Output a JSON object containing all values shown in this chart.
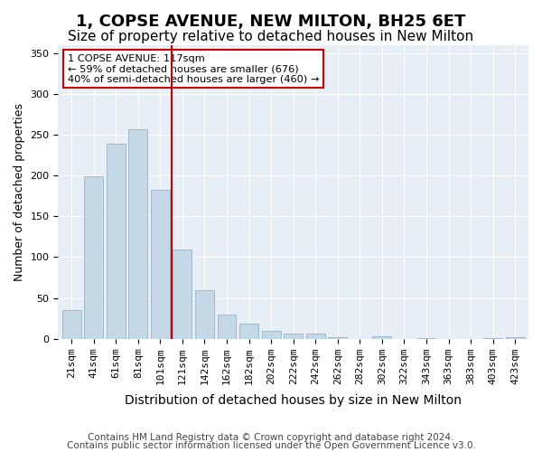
{
  "title": "1, COPSE AVENUE, NEW MILTON, BH25 6ET",
  "subtitle": "Size of property relative to detached houses in New Milton",
  "xlabel": "Distribution of detached houses by size in New Milton",
  "ylabel": "Number of detached properties",
  "categories": [
    "21sqm",
    "41sqm",
    "61sqm",
    "81sqm",
    "101sqm",
    "121sqm",
    "142sqm",
    "162sqm",
    "182sqm",
    "202sqm",
    "222sqm",
    "242sqm",
    "262sqm",
    "282sqm",
    "302sqm",
    "322sqm",
    "343sqm",
    "363sqm",
    "383sqm",
    "403sqm",
    "423sqm"
  ],
  "values": [
    35,
    199,
    239,
    257,
    183,
    109,
    59,
    30,
    19,
    10,
    6,
    6,
    2,
    0,
    3,
    0,
    1,
    0,
    0,
    1,
    2
  ],
  "bar_color": "#c5d8e8",
  "bar_edge_color": "#a0b8cc",
  "vline_color": "#cc0000",
  "annotation_text": "1 COPSE AVENUE: 117sqm\n← 59% of detached houses are smaller (676)\n40% of semi-detached houses are larger (460) →",
  "annotation_box_color": "#ffffff",
  "annotation_box_edge_color": "#cc0000",
  "ylim": [
    0,
    360
  ],
  "yticks": [
    0,
    50,
    100,
    150,
    200,
    250,
    300,
    350
  ],
  "background_color": "#e8eef5",
  "footer_line1": "Contains HM Land Registry data © Crown copyright and database right 2024.",
  "footer_line2": "Contains public sector information licensed under the Open Government Licence v3.0.",
  "title_fontsize": 13,
  "subtitle_fontsize": 11,
  "xlabel_fontsize": 10,
  "ylabel_fontsize": 9,
  "tick_fontsize": 8,
  "footer_fontsize": 7.5
}
